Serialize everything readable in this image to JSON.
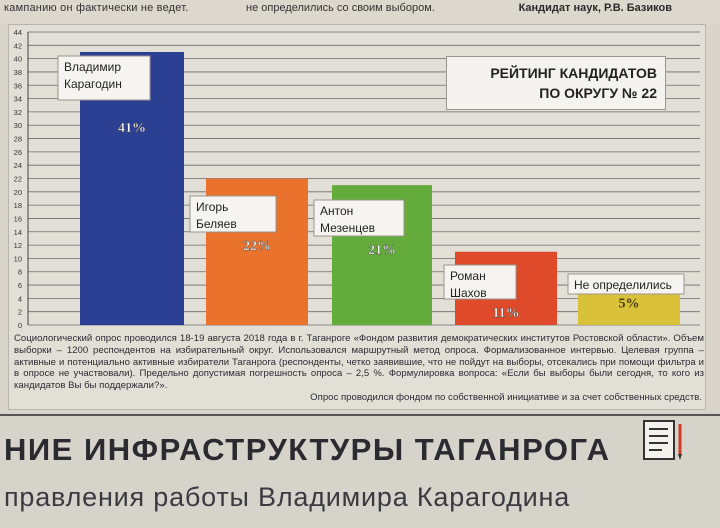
{
  "header": {
    "left_text": "кампанию он фактически не ведет.",
    "middle_text": "не определились со своим выбором.",
    "right_text": "Кандидат наук, Р.В. Базиков"
  },
  "chart_data": {
    "type": "bar",
    "title_lines": [
      "РЕЙТИНГ КАНДИДАТОВ",
      "ПО ОКРУГУ № 22"
    ],
    "categories": [
      [
        "Владимир",
        "Карагодин"
      ],
      [
        "Игорь",
        "Беляев"
      ],
      [
        "Антон",
        "Мезенцев"
      ],
      [
        "Роман",
        "Шахов"
      ],
      [
        "Не определились"
      ]
    ],
    "values": [
      41,
      22,
      21,
      11,
      5
    ],
    "value_labels": [
      "41%",
      "22%",
      "21%",
      "11%",
      "5%"
    ],
    "colors": [
      "#2b3f93",
      "#e9722c",
      "#63ab3a",
      "#df4a2a",
      "#d9c23a"
    ],
    "ylim": [
      0,
      44
    ],
    "yticks": [
      0,
      2,
      4,
      6,
      8,
      10,
      12,
      14,
      16,
      18,
      20,
      22,
      24,
      26,
      28,
      30,
      32,
      34,
      36,
      38,
      40,
      42,
      44
    ],
    "grid": true
  },
  "caption": {
    "body": "Социологический опрос проводился 18-19 августа 2018 года в г. Таганроге «Фондом развития демократических институтов Ростовской области». Объем выборки – 1200 респондентов на избирательный округ. Использовался маршрутный метод опроса. Формализованное интервью. Целевая группа – активные и потенциально активные избиратели Таганрога (респонденты, четко заявившие, что не пойдут на выборы, отсекались при помощи фильтра и в опросе не участвовали). Предельно допустимая погрешность опроса – 2,5 %. Формулировка вопроса: «Если бы выборы были сегодня, то кого из кандидатов Вы бы поддержали?».",
    "last_line": "Опрос проводился фондом по собственной инициативе и за счет собственных средств."
  },
  "headline": {
    "line1": "НИЕ ИНФРАСТРУКТУРЫ ТАГАНРОГА",
    "line2": "правления работы Владимира Карагодина"
  },
  "icons": {
    "document": "document-checklist-icon"
  }
}
